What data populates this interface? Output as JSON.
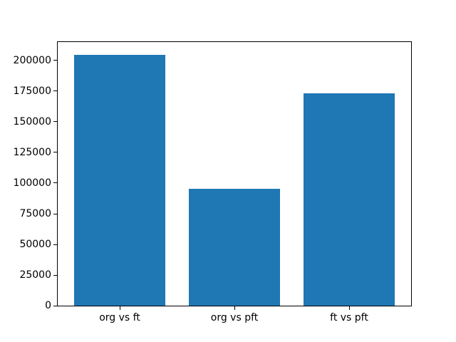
{
  "chart_data": {
    "type": "bar",
    "categories": [
      "org vs ft",
      "org vs pft",
      "ft vs pft"
    ],
    "values": [
      204800,
      95600,
      173300
    ],
    "title": "",
    "xlabel": "",
    "ylabel": "",
    "ylim": [
      0,
      215040
    ],
    "xlim": [
      -0.54,
      2.54
    ],
    "yticks": [
      0,
      25000,
      50000,
      75000,
      100000,
      125000,
      150000,
      175000,
      200000
    ],
    "ytick_labels": [
      "0",
      "25000",
      "50000",
      "75000",
      "100000",
      "125000",
      "150000",
      "175000",
      "200000"
    ],
    "bar_width": 0.8,
    "bar_color": "#1f77b4",
    "grid": false,
    "legend": null,
    "background_color": "#ffffff",
    "spine_color": "#000000"
  }
}
